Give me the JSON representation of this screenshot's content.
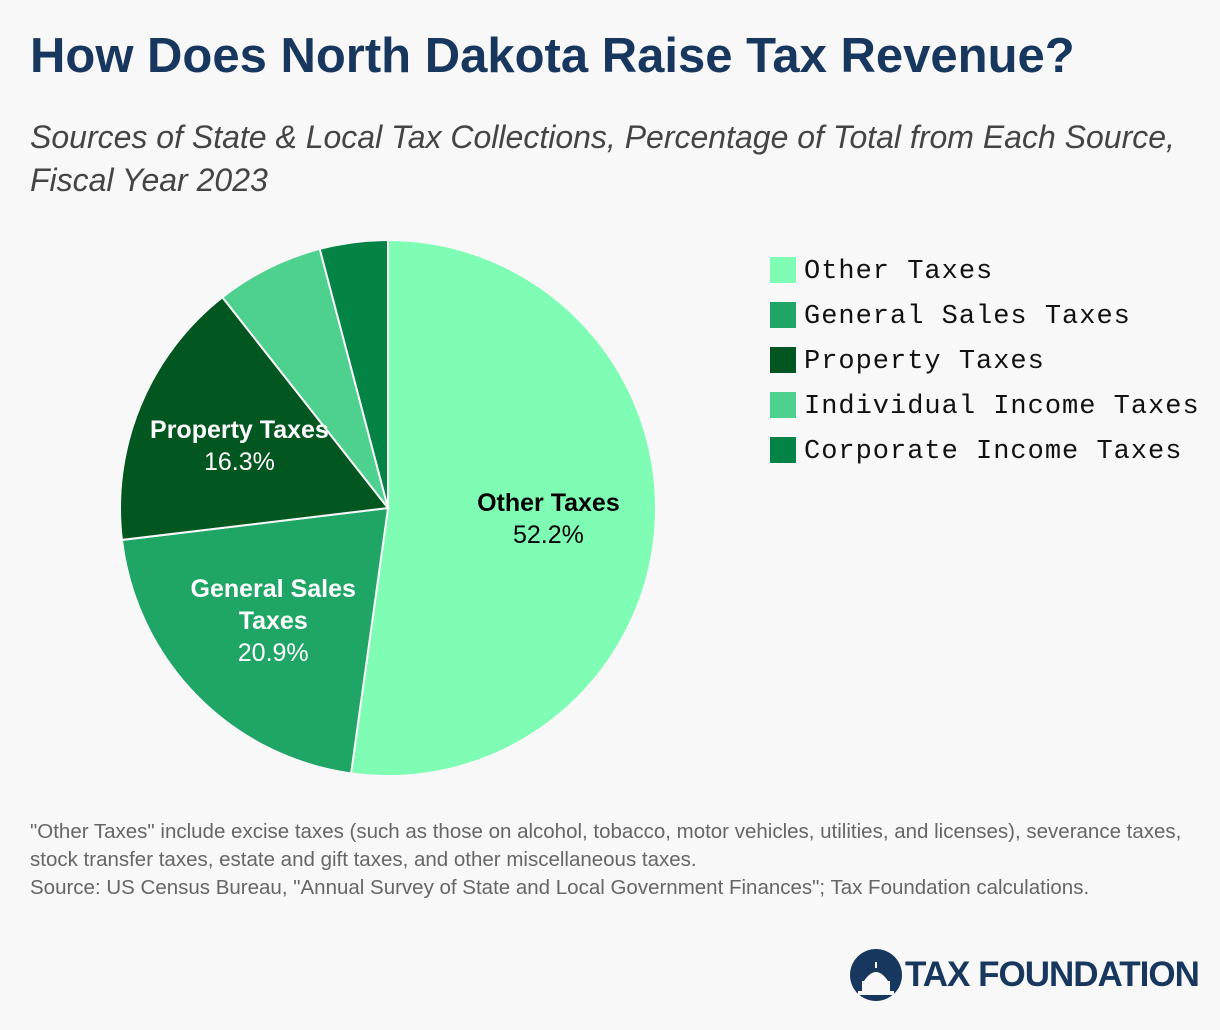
{
  "chart_data": {
    "type": "pie",
    "title": "How Does North Dakota Raise Tax Revenue?",
    "subtitle": "Sources of State & Local Tax Collections, Percentage of Total from Each Source, Fiscal Year 2023",
    "categories": [
      "Other Taxes",
      "General Sales Taxes",
      "Property Taxes",
      "Individual Income Taxes",
      "Corporate Income Taxes"
    ],
    "values": [
      52.2,
      20.9,
      16.3,
      6.5,
      4.1
    ],
    "value_labels": [
      "52.2%",
      "20.9%",
      "16.3%",
      null,
      null
    ],
    "colors": [
      "#80fdb5",
      "#1fa667",
      "#02561f",
      "#4ed08f",
      "#038346"
    ],
    "label_colors": [
      "#000000",
      "#ffffff",
      "#ffffff",
      null,
      null
    ],
    "legend": "right"
  },
  "footer": {
    "note": "\"Other Taxes\" include excise taxes (such as those on alcohol, tobacco, motor vehicles, utilities, and licenses), severance taxes, stock transfer taxes, estate and gift taxes, and other miscellaneous taxes.",
    "source": "Source: US Census Bureau, \"Annual Survey of State and Local Government Finances\"; Tax Foundation calculations.",
    "logo": "TAX FOUNDATION"
  }
}
